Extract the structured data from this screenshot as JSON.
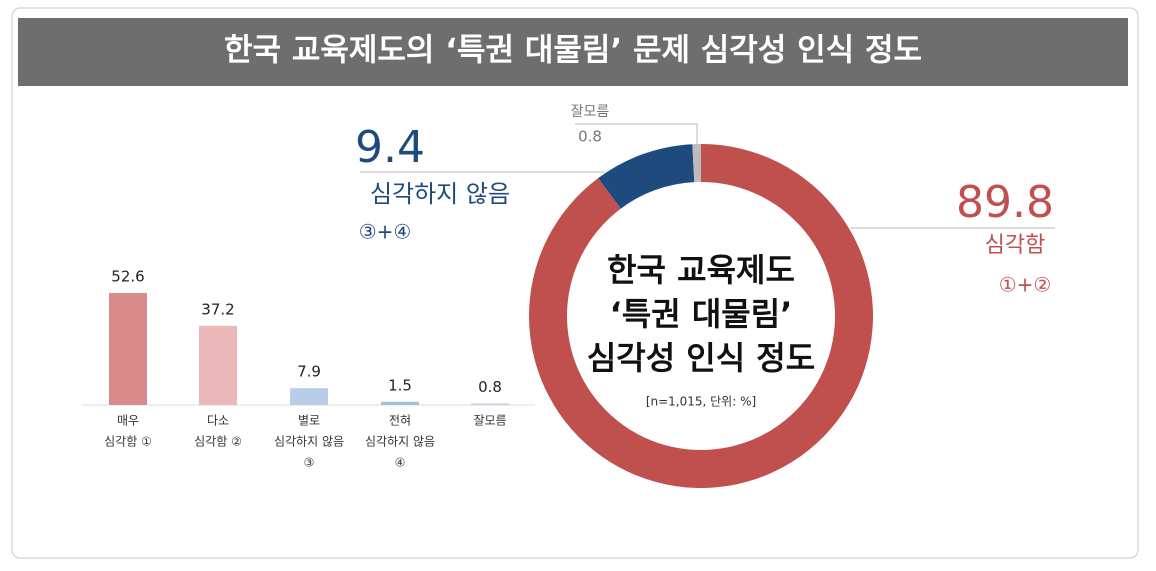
{
  "title": "한국 교육제도의 ‘특권 대물림’ 문제 심각성 인식 정도",
  "chart_data": [
    {
      "type": "bar",
      "categories": [
        [
          "매우",
          "심각함 ①"
        ],
        [
          "다소",
          "심각함 ②"
        ],
        [
          "별로",
          "심각하지 않음",
          "③"
        ],
        [
          "전혀",
          "심각하지 않음",
          "④"
        ],
        [
          "잘모름"
        ]
      ],
      "values": [
        52.6,
        37.2,
        7.9,
        1.5,
        0.8
      ],
      "colors": [
        "#d98b8b",
        "#ebb9b9",
        "#b7cde8",
        "#a6bfe0",
        "#ccd6e6"
      ]
    },
    {
      "type": "pie",
      "center_text": [
        "한국 교육제도",
        "‘특권 대물림’",
        "심각성 인식 정도"
      ],
      "note": "[n=1,015, 단위: %]",
      "segments": [
        {
          "name": "심각함",
          "note": "①+②",
          "value": 89.8,
          "color": "#c0504d"
        },
        {
          "name": "심각하지 않음",
          "note": "③+④",
          "value": 9.4,
          "color": "#1f4a7d"
        },
        {
          "name": "잘모름",
          "value": 0.8,
          "color": "#bdbdbd"
        }
      ]
    }
  ]
}
